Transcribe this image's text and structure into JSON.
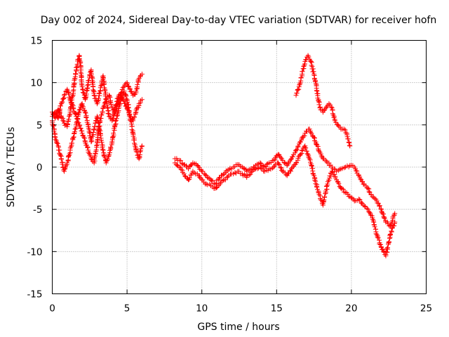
{
  "chart_data": {
    "type": "scatter",
    "title": "Day 002 of 2024, Sidereal Day-to-day VTEC variation (SDTVAR) for receiver hofn",
    "xlabel": "GPS time / hours",
    "ylabel": "SDTVAR / TECUs",
    "xlim": [
      0,
      25
    ],
    "ylim": [
      -15,
      15
    ],
    "x_ticks": [
      "0",
      "5",
      "10",
      "15",
      "20",
      "25"
    ],
    "y_ticks": [
      "15",
      "10",
      "5",
      "0",
      "-5",
      "-10",
      "-15"
    ],
    "grid": true,
    "marker": "+",
    "color": "#ff0000",
    "series": [
      {
        "name": "block1_trace_a",
        "x": [
          0.0,
          0.2,
          0.4,
          0.6,
          0.8,
          1.0,
          1.2,
          1.4,
          1.6,
          1.8,
          1.9,
          2.0,
          2.2,
          2.4,
          2.6,
          2.8,
          3.0,
          3.2,
          3.4,
          3.6,
          3.8,
          4.0,
          4.2,
          4.4,
          4.6,
          4.8,
          5.0,
          5.2,
          5.4,
          5.6,
          5.8,
          6.0
        ],
        "y": [
          6.5,
          5.8,
          6.8,
          6.0,
          5.2,
          4.8,
          6.5,
          9.0,
          11.5,
          13.2,
          12.0,
          9.5,
          8.0,
          10.0,
          11.5,
          8.5,
          7.5,
          9.0,
          10.8,
          8.0,
          6.0,
          5.5,
          7.0,
          8.2,
          8.8,
          9.5,
          10.0,
          9.2,
          8.5,
          8.8,
          10.5,
          11.0
        ]
      },
      {
        "name": "block1_trace_b",
        "x": [
          0.0,
          0.2,
          0.4,
          0.6,
          0.8,
          1.0,
          1.2,
          1.4,
          1.6,
          1.8,
          2.0,
          2.2,
          2.4,
          2.6,
          2.8,
          3.0,
          3.2,
          3.4,
          3.6,
          3.8,
          4.0,
          4.2,
          4.4,
          4.6,
          4.8,
          5.0,
          5.2,
          5.4,
          5.6,
          5.8,
          6.0
        ],
        "y": [
          5.5,
          3.5,
          2.5,
          1.0,
          -0.5,
          0.5,
          2.0,
          3.5,
          5.0,
          6.5,
          7.5,
          6.5,
          5.0,
          3.0,
          4.5,
          6.0,
          4.0,
          2.0,
          0.5,
          1.5,
          3.0,
          5.0,
          6.5,
          8.0,
          9.0,
          8.0,
          6.0,
          4.0,
          2.0,
          1.0,
          2.5
        ]
      },
      {
        "name": "block1_trace_c",
        "x": [
          0.0,
          0.2,
          0.4,
          0.6,
          0.8,
          1.0,
          1.2,
          1.4,
          1.6,
          1.8,
          2.0,
          2.2,
          2.4,
          2.6,
          2.8,
          3.0,
          3.2,
          3.4,
          3.6,
          3.8,
          4.0,
          4.2,
          4.4,
          4.6,
          4.8,
          5.0,
          5.2,
          5.4,
          5.6,
          5.8,
          6.0
        ],
        "y": [
          6.0,
          6.5,
          5.8,
          7.5,
          8.5,
          9.2,
          8.0,
          7.0,
          6.0,
          5.0,
          4.0,
          3.0,
          2.0,
          1.0,
          0.5,
          3.0,
          5.5,
          7.0,
          8.0,
          8.5,
          7.0,
          6.5,
          7.5,
          8.5,
          7.8,
          7.0,
          6.0,
          5.5,
          6.5,
          7.5,
          8.0
        ]
      },
      {
        "name": "block2_main",
        "x": [
          8.2,
          8.5,
          8.8,
          9.1,
          9.4,
          9.7,
          10.0,
          10.3,
          10.6,
          10.9,
          11.2,
          11.5,
          11.8,
          12.1,
          12.4,
          12.7,
          13.0,
          13.3,
          13.6,
          13.9,
          14.2,
          14.5,
          14.8,
          15.1,
          15.4,
          15.7,
          16.0,
          16.3,
          16.6,
          16.9,
          17.2,
          17.5,
          17.8,
          18.1,
          18.4,
          18.7,
          19.0,
          19.3,
          19.6,
          19.9,
          20.2,
          20.5,
          20.8,
          21.1,
          21.4,
          21.7,
          22.0,
          22.3,
          22.6,
          22.9
        ],
        "y": [
          1.0,
          0.8,
          0.3,
          -0.2,
          0.5,
          0.2,
          -0.5,
          -1.0,
          -1.5,
          -2.0,
          -1.2,
          -0.8,
          -0.3,
          0.0,
          0.3,
          0.0,
          -0.5,
          -0.2,
          0.2,
          0.5,
          0.0,
          0.5,
          0.8,
          1.5,
          0.8,
          0.2,
          1.0,
          2.0,
          3.0,
          4.0,
          4.5,
          3.5,
          2.0,
          1.0,
          0.5,
          0.0,
          -0.5,
          -0.2,
          0.0,
          0.2,
          0.0,
          -1.0,
          -2.0,
          -2.5,
          -3.5,
          -4.0,
          -5.0,
          -6.5,
          -7.0,
          -5.5
        ]
      },
      {
        "name": "block2_lower",
        "x": [
          8.2,
          8.5,
          8.8,
          9.1,
          9.4,
          9.7,
          10.0,
          10.3,
          10.6,
          10.9,
          11.2,
          11.5,
          11.8,
          12.1,
          12.4,
          12.7,
          13.0,
          13.3,
          13.6,
          13.9,
          14.2,
          14.5,
          14.8,
          15.1,
          15.4,
          15.7,
          16.0,
          16.3,
          16.6,
          16.9,
          17.2,
          17.5,
          17.8,
          18.1,
          18.4,
          18.7,
          19.0,
          19.3,
          19.6,
          19.9,
          20.2,
          20.5,
          20.8,
          21.1,
          21.4,
          21.7,
          22.0,
          22.3,
          22.6,
          22.9
        ],
        "y": [
          0.5,
          0.0,
          -0.8,
          -1.5,
          -0.5,
          -0.8,
          -1.5,
          -2.0,
          -2.2,
          -2.5,
          -2.0,
          -1.5,
          -1.0,
          -0.8,
          -0.5,
          -0.8,
          -1.2,
          -0.6,
          -0.2,
          0.0,
          -0.5,
          -0.2,
          0.0,
          0.5,
          -0.5,
          -1.0,
          -0.2,
          0.5,
          1.5,
          2.5,
          1.0,
          -1.0,
          -3.0,
          -4.5,
          -2.0,
          -0.5,
          -1.5,
          -2.5,
          -3.0,
          -3.5,
          -4.0,
          -3.8,
          -4.5,
          -5.0,
          -6.0,
          -8.0,
          -9.5,
          -10.5,
          -8.0,
          -6.5
        ]
      },
      {
        "name": "block2_upper_arc",
        "x": [
          16.3,
          16.5,
          16.7,
          16.9,
          17.1,
          17.3,
          17.5,
          17.7,
          17.9,
          18.1,
          18.3,
          18.5,
          18.7,
          18.9,
          19.1,
          19.3,
          19.5,
          19.7,
          19.9
        ],
        "y": [
          8.5,
          9.5,
          11.0,
          12.5,
          13.2,
          12.5,
          11.0,
          9.0,
          7.0,
          6.5,
          7.0,
          7.5,
          7.0,
          5.5,
          5.0,
          4.5,
          4.5,
          4.0,
          2.5
        ]
      }
    ]
  }
}
